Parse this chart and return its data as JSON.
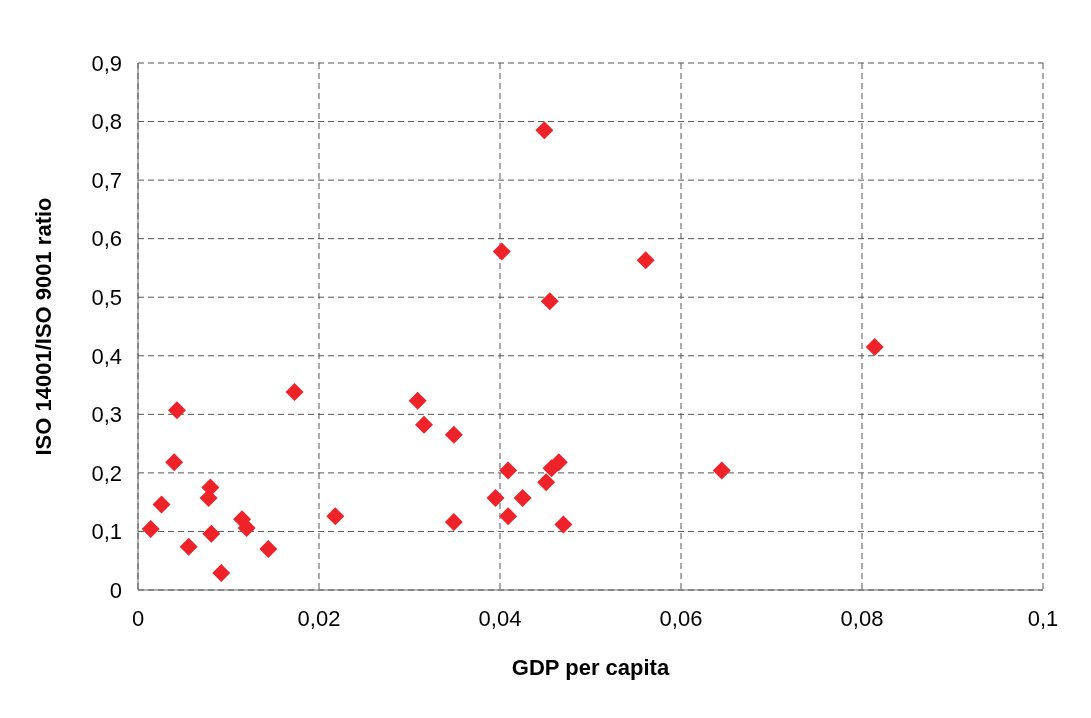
{
  "chart_data": {
    "type": "scatter",
    "xlabel": "GDP per capita",
    "ylabel": "ISO 14001/ISO 9001 ratio",
    "x": [
      0.0014,
      0.0026,
      0.004,
      0.0043,
      0.0056,
      0.0078,
      0.008,
      0.0081,
      0.0092,
      0.0115,
      0.012,
      0.0144,
      0.0173,
      0.0218,
      0.0309,
      0.0316,
      0.0349,
      0.0349,
      0.0395,
      0.0402,
      0.0409,
      0.0409,
      0.0425,
      0.0449,
      0.0451,
      0.0455,
      0.0457,
      0.0465,
      0.047,
      0.0561,
      0.0645,
      0.0814
    ],
    "values": [
      0.104,
      0.146,
      0.218,
      0.307,
      0.074,
      0.157,
      0.175,
      0.096,
      0.029,
      0.121,
      0.106,
      0.07,
      0.338,
      0.126,
      0.323,
      0.282,
      0.265,
      0.116,
      0.157,
      0.578,
      0.204,
      0.126,
      0.157,
      0.785,
      0.184,
      0.493,
      0.208,
      0.218,
      0.112,
      0.563,
      0.204,
      0.415
    ],
    "color": "#ee2229",
    "marker": "diamond",
    "xlim": [
      0,
      0.1
    ],
    "xticks": [
      {
        "value": 0,
        "label": "0"
      },
      {
        "value": 0.02,
        "label": "0,02"
      },
      {
        "value": 0.04,
        "label": "0,04"
      },
      {
        "value": 0.06,
        "label": "0,06"
      },
      {
        "value": 0.08,
        "label": "0,08"
      },
      {
        "value": 0.1,
        "label": "0,1"
      }
    ],
    "ylim": [
      0,
      0.9
    ],
    "yticks": [
      {
        "value": 0,
        "label": "0"
      },
      {
        "value": 0.1,
        "label": "0,1"
      },
      {
        "value": 0.2,
        "label": "0,2"
      },
      {
        "value": 0.3,
        "label": "0,3"
      },
      {
        "value": 0.4,
        "label": "0,4"
      },
      {
        "value": 0.5,
        "label": "0,5"
      },
      {
        "value": 0.6,
        "label": "0,6"
      },
      {
        "value": 0.7,
        "label": "0,7"
      },
      {
        "value": 0.8,
        "label": "0,8"
      },
      {
        "value": 0.9,
        "label": "0,9"
      }
    ],
    "grid": true,
    "legend": false
  }
}
